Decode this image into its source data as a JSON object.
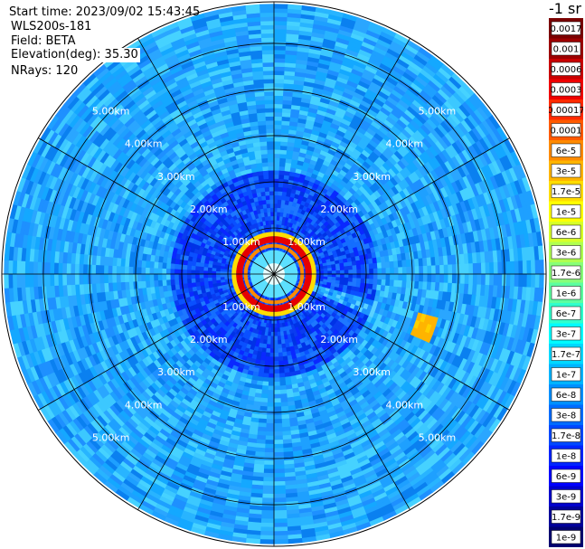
{
  "header": {
    "start_time": "Start time: 2023/09/02 15:43:45",
    "instrument": "WLS200s-181",
    "field": "Field: BETA",
    "elevation": "Elevation(deg): 35.30",
    "nrays": "NRays: 120"
  },
  "colorbar": {
    "unit": "-1 sr",
    "labels": [
      "0.0017",
      "0.001",
      "0.0006",
      "0.0003",
      "0.00017",
      "0.0001",
      "6e-5",
      "3e-5",
      "1.7e-5",
      "1e-5",
      "6e-6",
      "3e-6",
      "1.7e-6",
      "1e-6",
      "6e-7",
      "3e-7",
      "1.7e-7",
      "1e-7",
      "6e-8",
      "3e-8",
      "1.7e-8",
      "1e-8",
      "6e-9",
      "3e-9",
      "1.7e-9",
      "1e-9"
    ],
    "colors": [
      "#7a0000",
      "#9c0000",
      "#c80000",
      "#ee0000",
      "#ff2a00",
      "#ff5a00",
      "#ff8a00",
      "#ffb400",
      "#ffdc00",
      "#ffff00",
      "#d8ff28",
      "#b0ff50",
      "#88ff78",
      "#5cffa0",
      "#30ffcc",
      "#00fcff",
      "#00d8ff",
      "#00b4ff",
      "#0090ff",
      "#006cff",
      "#0048ff",
      "#0024ff",
      "#0000ff",
      "#0000cc",
      "#00009a",
      "#000070"
    ]
  },
  "chart_data": {
    "type": "ppi",
    "title": "",
    "field": "BETA",
    "unit": "sr-1",
    "scale": "log",
    "range_rings_km": [
      1,
      2,
      3,
      4,
      5
    ],
    "ring_labels": [
      "1.00km",
      "2.00km",
      "3.00km",
      "4.00km",
      "5.00km"
    ],
    "max_range_km": 5.9,
    "ray_count": 120,
    "azimuth_grid_deg": 30,
    "features": [
      {
        "label": "near-field ring",
        "range_km": 0.75,
        "value": "1e-4 to 1e-3"
      },
      {
        "label": "plume",
        "azimuth_deg": 110,
        "range_km": [
          0.8,
          2.3
        ],
        "value": "1e-6 to 1e-5"
      },
      {
        "label": "patch",
        "azimuth_deg": 110,
        "range_km": 3.4,
        "value": "1e-5"
      }
    ],
    "background_value": "1e-8 to 1e-7",
    "colorbar_min": "1e-9",
    "colorbar_max": "0.0017"
  }
}
